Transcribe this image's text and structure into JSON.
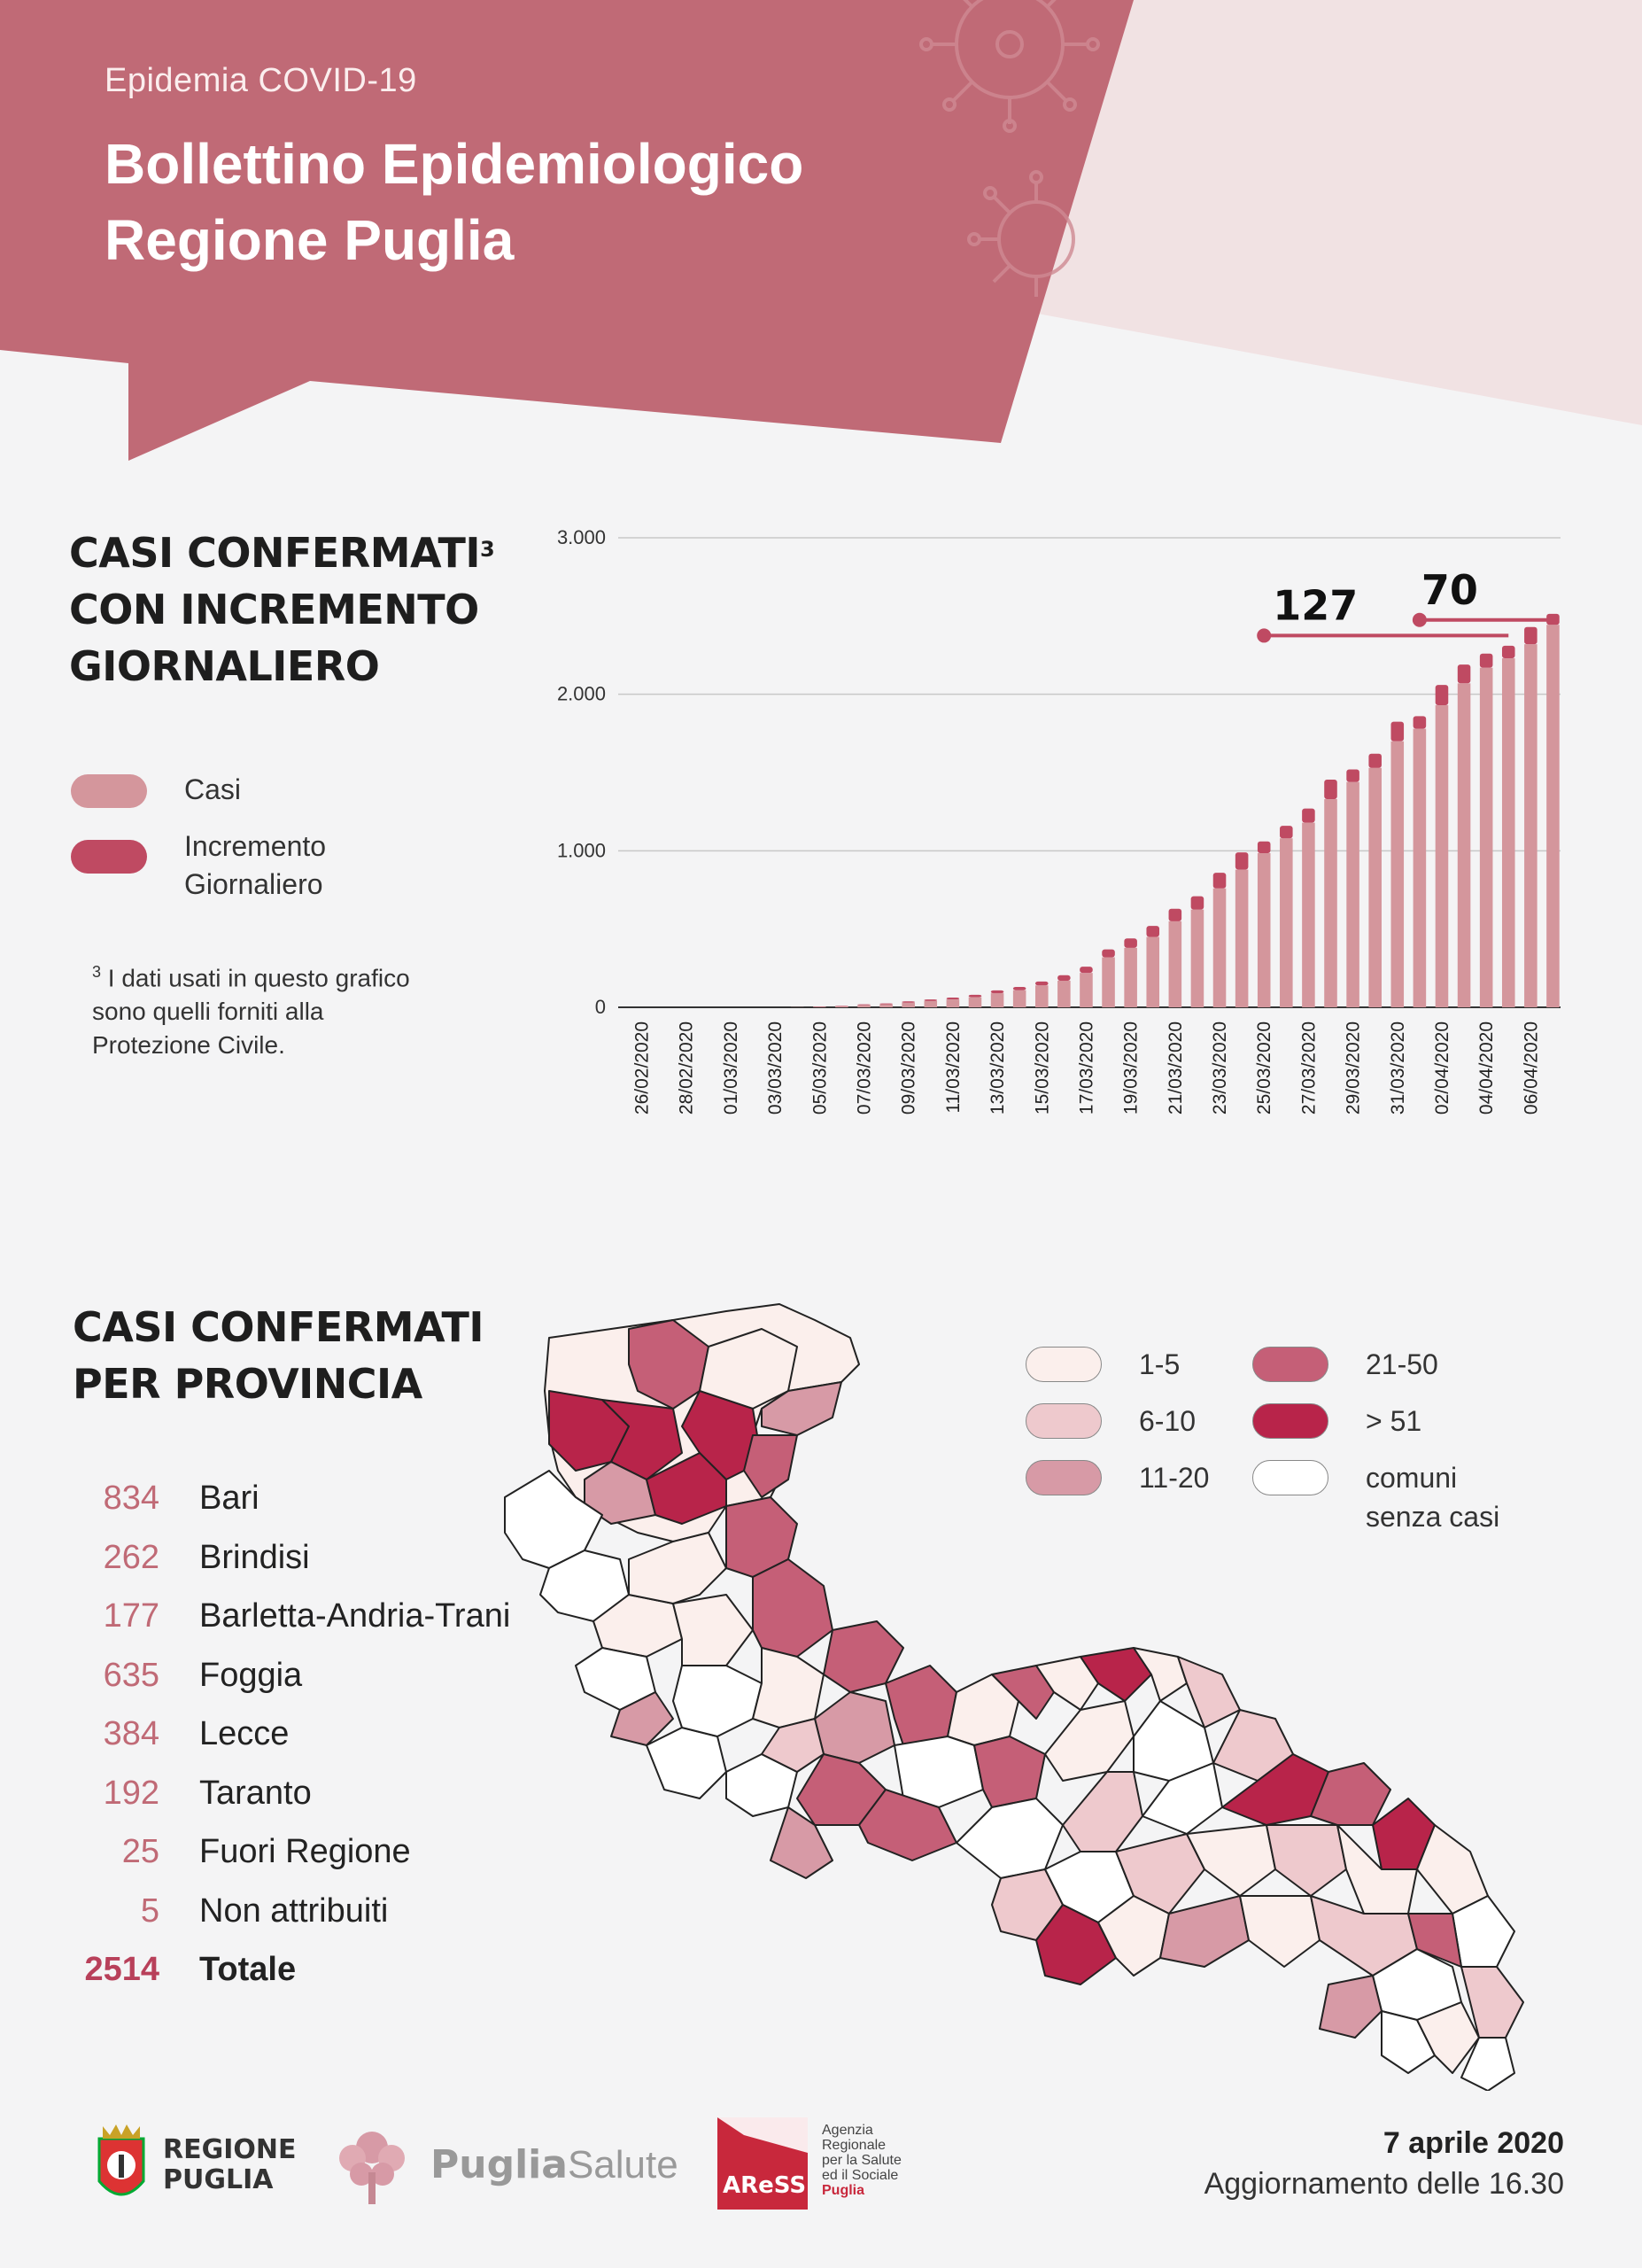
{
  "header": {
    "kicker": "Epidemia COVID-19",
    "title_line1": "Bollettino Epidemiologico",
    "title_line2": "Regione Puglia"
  },
  "colors": {
    "header_bg": "#c06a76",
    "header_light": "#f3e3e4",
    "casi": "#d4969c",
    "incremento": "#bf4a62",
    "range_1_5": "#fbefec",
    "range_6_10": "#eec9cd",
    "range_11_20": "#d79aa6",
    "range_21_50": "#c55f77",
    "range_51_plus": "#b8244a",
    "no_cases": "#ffffff"
  },
  "chart_section": {
    "title_line1": "CASI CONFERMATI",
    "title_sup": "3",
    "title_line2": "CON INCREMENTO",
    "title_line3": "GIORNALIERO",
    "legend": [
      {
        "label_line1": "Casi",
        "label_line2": "",
        "color": "#d4969c"
      },
      {
        "label_line1": "Incremento",
        "label_line2": "Giornaliero",
        "color": "#bf4a62"
      }
    ],
    "footnote_sup": "3",
    "footnote_line1": "I dati usati in questo grafico",
    "footnote_line2": "sono quelli forniti alla",
    "footnote_line3": "Protezione Civile."
  },
  "chart_data": {
    "type": "bar",
    "stacked": true,
    "categories": [
      "26/02/2020",
      "27/02/2020",
      "28/02/2020",
      "29/02/2020",
      "01/03/2020",
      "02/03/2020",
      "03/03/2020",
      "04/03/2020",
      "05/03/2020",
      "06/03/2020",
      "07/03/2020",
      "08/03/2020",
      "09/03/2020",
      "10/03/2020",
      "11/03/2020",
      "12/03/2020",
      "13/03/2020",
      "14/03/2020",
      "15/03/2020",
      "16/03/2020",
      "17/03/2020",
      "18/03/2020",
      "19/03/2020",
      "20/03/2020",
      "21/03/2020",
      "22/03/2020",
      "23/03/2020",
      "24/03/2020",
      "25/03/2020",
      "26/03/2020",
      "27/03/2020",
      "28/03/2020",
      "29/03/2020",
      "30/03/2020",
      "31/03/2020",
      "01/04/2020",
      "02/04/2020",
      "03/04/2020",
      "04/04/2020",
      "05/04/2020",
      "06/04/2020",
      "07/04/2020"
    ],
    "tick_labels": [
      "26/02/2020",
      "28/02/2020",
      "01/03/2020",
      "03/03/2020",
      "05/03/2020",
      "07/03/2020",
      "09/03/2020",
      "11/03/2020",
      "13/03/2020",
      "15/03/2020",
      "17/03/2020",
      "19/03/2020",
      "21/03/2020",
      "23/03/2020",
      "25/03/2020",
      "27/03/2020",
      "29/03/2020",
      "31/03/2020",
      "02/04/2020",
      "04/04/2020",
      "06/04/2020"
    ],
    "series": [
      {
        "name": "Casi",
        "values": [
          0,
          0,
          0,
          0,
          0,
          0,
          0,
          1,
          3,
          7,
          15,
          20,
          30,
          40,
          50,
          65,
          90,
          110,
          140,
          170,
          220,
          320,
          380,
          450,
          550,
          625,
          760,
          880,
          985,
          1080,
          1180,
          1330,
          1440,
          1530,
          1700,
          1780,
          1930,
          2070,
          2170,
          2230,
          2320,
          2444
        ]
      },
      {
        "name": "Incremento Giornaliero",
        "values": [
          0,
          0,
          0,
          0,
          0,
          0,
          0,
          0,
          2,
          3,
          4,
          5,
          8,
          10,
          12,
          15,
          18,
          20,
          25,
          35,
          40,
          50,
          60,
          70,
          80,
          85,
          100,
          110,
          75,
          80,
          90,
          125,
          80,
          90,
          125,
          80,
          130,
          120,
          90,
          80,
          110,
          70
        ]
      }
    ],
    "yticks": [
      0,
      1000,
      2000,
      3000
    ],
    "ytick_labels": [
      "0",
      "1.000",
      "2.000",
      "3.000"
    ],
    "ylim": [
      0,
      3000
    ],
    "annotations": [
      {
        "label": "127",
        "from": "25/03/2020",
        "to": "05/04/2020"
      },
      {
        "label": "70",
        "from": "01/04/2020",
        "to": "07/04/2020"
      }
    ]
  },
  "province_section": {
    "title_line1": "CASI CONFERMATI",
    "title_line2": "PER PROVINCIA",
    "rows": [
      {
        "value": "834",
        "name": "Bari"
      },
      {
        "value": "262",
        "name": "Brindisi"
      },
      {
        "value": "177",
        "name": "Barletta-Andria-Trani"
      },
      {
        "value": "635",
        "name": "Foggia"
      },
      {
        "value": "384",
        "name": "Lecce"
      },
      {
        "value": "192",
        "name": "Taranto"
      },
      {
        "value": "25",
        "name": "Fuori Regione"
      },
      {
        "value": "5",
        "name": "Non attribuiti"
      }
    ],
    "total": {
      "value": "2514",
      "name": "Totale"
    },
    "map_legend": [
      {
        "label_line1": "1-5",
        "label_line2": "",
        "color": "#fbefec"
      },
      {
        "label_line1": "21-50",
        "label_line2": "",
        "color": "#c55f77"
      },
      {
        "label_line1": "6-10",
        "label_line2": "",
        "color": "#eec9cd"
      },
      {
        "label_line1": "> 51",
        "label_line2": "",
        "color": "#b8244a"
      },
      {
        "label_line1": "11-20",
        "label_line2": "",
        "color": "#d79aa6"
      },
      {
        "label_line1": "comuni",
        "label_line2": "senza casi",
        "color": "#ffffff"
      }
    ]
  },
  "footer": {
    "logo1_line1": "REGIONE",
    "logo1_line2": "PUGLIA",
    "logo2_bold": "Puglia",
    "logo2_light": "Salute",
    "logo3_mark": "AReSS",
    "logo3_line1": "Agenzia",
    "logo3_line2": "Regionale",
    "logo3_line3": "per la Salute",
    "logo3_line4": "ed il Sociale",
    "logo3_line5": "Puglia",
    "date": "7 aprile 2020",
    "update": "Aggiornamento delle 16.30"
  }
}
